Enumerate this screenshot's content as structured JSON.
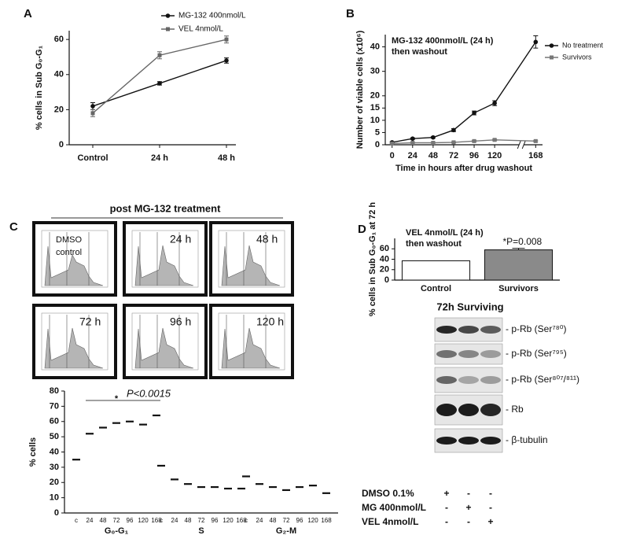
{
  "chart_data": [
    {
      "type": "line",
      "label": "A",
      "ylabel": "% cells in Sub G₀-G₁",
      "categories": [
        "Control",
        "24 h",
        "48 h"
      ],
      "series": [
        {
          "name": "MG-132 400nmol/L",
          "color": "#111111",
          "marker": "circle",
          "values": [
            22,
            35,
            48
          ],
          "errors": [
            2,
            1,
            1.5
          ]
        },
        {
          "name": "VEL 4nmol/L",
          "color": "#666666",
          "marker": "square",
          "values": [
            18,
            51,
            60
          ],
          "errors": [
            2,
            2,
            2
          ]
        }
      ],
      "ylim": [
        0,
        65
      ],
      "yticks": [
        0,
        20,
        40,
        60
      ],
      "legend": "top"
    },
    {
      "type": "line",
      "label": "B",
      "title": [
        "MG-132 400nmol/L (24 h)",
        "then washout"
      ],
      "ylabel": "Number of viable cells (x10⁶)",
      "xlabel": "Time in hours after drug washout",
      "x": [
        0,
        24,
        48,
        72,
        96,
        120,
        168
      ],
      "xlim": [
        -8,
        176
      ],
      "xticks": [
        0,
        24,
        48,
        72,
        96,
        120,
        168
      ],
      "series": [
        {
          "name": "No treatment",
          "color": "#111111",
          "marker": "circle",
          "values": [
            1,
            2.5,
            3,
            6,
            13,
            17,
            42
          ],
          "errors": [
            0.3,
            0.3,
            0.3,
            0.6,
            0.8,
            1,
            2.5
          ]
        },
        {
          "name": "Survivors",
          "color": "#777777",
          "marker": "square",
          "values": [
            0.5,
            0.8,
            0.8,
            1,
            1.5,
            2,
            1.5
          ],
          "errors": [
            0.2,
            0.2,
            0.2,
            0.2,
            0.3,
            0.3,
            0.3
          ]
        }
      ],
      "ylim": [
        0,
        45
      ],
      "yticks": [
        0,
        5,
        10,
        15,
        20,
        30,
        40
      ],
      "legend": "right"
    },
    {
      "type": "dot",
      "label": "C",
      "ylabel": "% cells",
      "categories": [
        "c",
        "24",
        "48",
        "72",
        "96",
        "120",
        "168"
      ],
      "series": [
        {
          "name": "G₀-G₁",
          "color": "#111111",
          "values": [
            35,
            52,
            56,
            59,
            60,
            58,
            64
          ]
        },
        {
          "name": "S",
          "color": "#111111",
          "values": [
            31,
            22,
            19,
            17,
            17,
            16,
            16
          ]
        },
        {
          "name": "G₂-M",
          "color": "#111111",
          "values": [
            24,
            19,
            17,
            15,
            17,
            18,
            13
          ]
        }
      ],
      "ylim": [
        0,
        80
      ],
      "yticks": [
        0,
        10,
        20,
        30,
        40,
        50,
        60,
        70,
        80
      ],
      "annotation": {
        "star": "*",
        "text": "P<0.0015"
      }
    },
    {
      "type": "bar",
      "label": "D",
      "title": [
        "VEL 4nmol/L (24 h)",
        "then washout"
      ],
      "ylabel": "% cells in Sub G₀-G₁ at 72 h",
      "categories": [
        "Control",
        "Survivors"
      ],
      "values": [
        37,
        58
      ],
      "errors": [
        null,
        3
      ],
      "colors": [
        "#ffffff",
        "#8a8a8a"
      ],
      "ylim": [
        0,
        80
      ],
      "yticks": [
        0,
        20,
        40,
        60
      ],
      "annotation": "*P=0.008"
    }
  ],
  "flow": {
    "title": "post MG-132 treatment",
    "panels": [
      [
        "DMSO",
        "control"
      ],
      [
        "24 h"
      ],
      [
        "48 h"
      ],
      [
        "72 h"
      ],
      [
        "96 h"
      ],
      [
        "120 h"
      ]
    ]
  },
  "blot": {
    "title": "72h Surviving",
    "bands": [
      "- p-Rb (Ser⁷⁸⁰)",
      "- p-Rb (Ser⁷⁹⁵)",
      "- p-Rb (Ser⁸⁰⁷/⁸¹¹)",
      "- Rb",
      "- β-tubulin"
    ],
    "treatments": [
      {
        "name": "DMSO 0.1%",
        "signs": [
          "+",
          "-",
          "-"
        ]
      },
      {
        "name": "MG 400nmol/L",
        "signs": [
          "-",
          "+",
          "-"
        ]
      },
      {
        "name": "VEL 4nmol/L",
        "signs": [
          "-",
          "-",
          "+"
        ]
      }
    ]
  }
}
